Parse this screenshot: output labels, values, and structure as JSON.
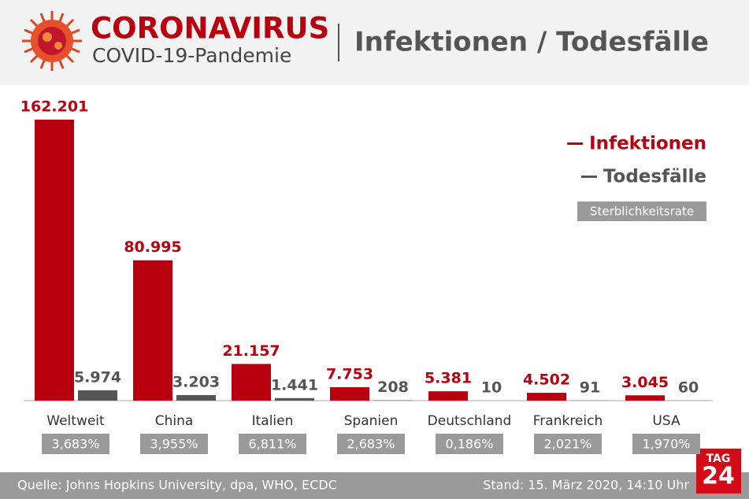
{
  "chart_data": {
    "type": "bar",
    "title": "CORONAVIRUS",
    "subtitle": "COVID-19-Pandemie",
    "heading": "Infektionen / Todesfälle",
    "categories": [
      "Weltweit",
      "China",
      "Italien",
      "Spanien",
      "Deutschland",
      "Frankreich",
      "USA"
    ],
    "series": [
      {
        "name": "Infektionen",
        "color": "#b8000f",
        "values": [
          162201,
          80995,
          21157,
          7753,
          5381,
          4502,
          3045
        ],
        "value_labels": [
          "162.201",
          "80.995",
          "21.157",
          "7.753",
          "5.381",
          "4.502",
          "3.045"
        ]
      },
      {
        "name": "Todesfälle",
        "color": "#555555",
        "values": [
          5974,
          3203,
          1441,
          208,
          10,
          91,
          60
        ],
        "value_labels": [
          "5.974",
          "3.203",
          "1.441",
          "208",
          "10",
          "91",
          "60"
        ]
      }
    ],
    "rates_name": "Sterblichkeitsrate",
    "rates": [
      3.683,
      3.955,
      6.811,
      2.683,
      0.186,
      2.021,
      1.97
    ],
    "rate_labels": [
      "3,683%",
      "3,955%",
      "6,811%",
      "2,683%",
      "0,186%",
      "2,021%",
      "1,970%"
    ],
    "legend": "top-right"
  },
  "footer": {
    "source": "Quelle: Johns Hopkins University, dpa, WHO, ECDC",
    "date": "Stand: 15. März 2020, 14:10 Uhr"
  },
  "logo": {
    "top": "TAG",
    "bottom": "24"
  }
}
